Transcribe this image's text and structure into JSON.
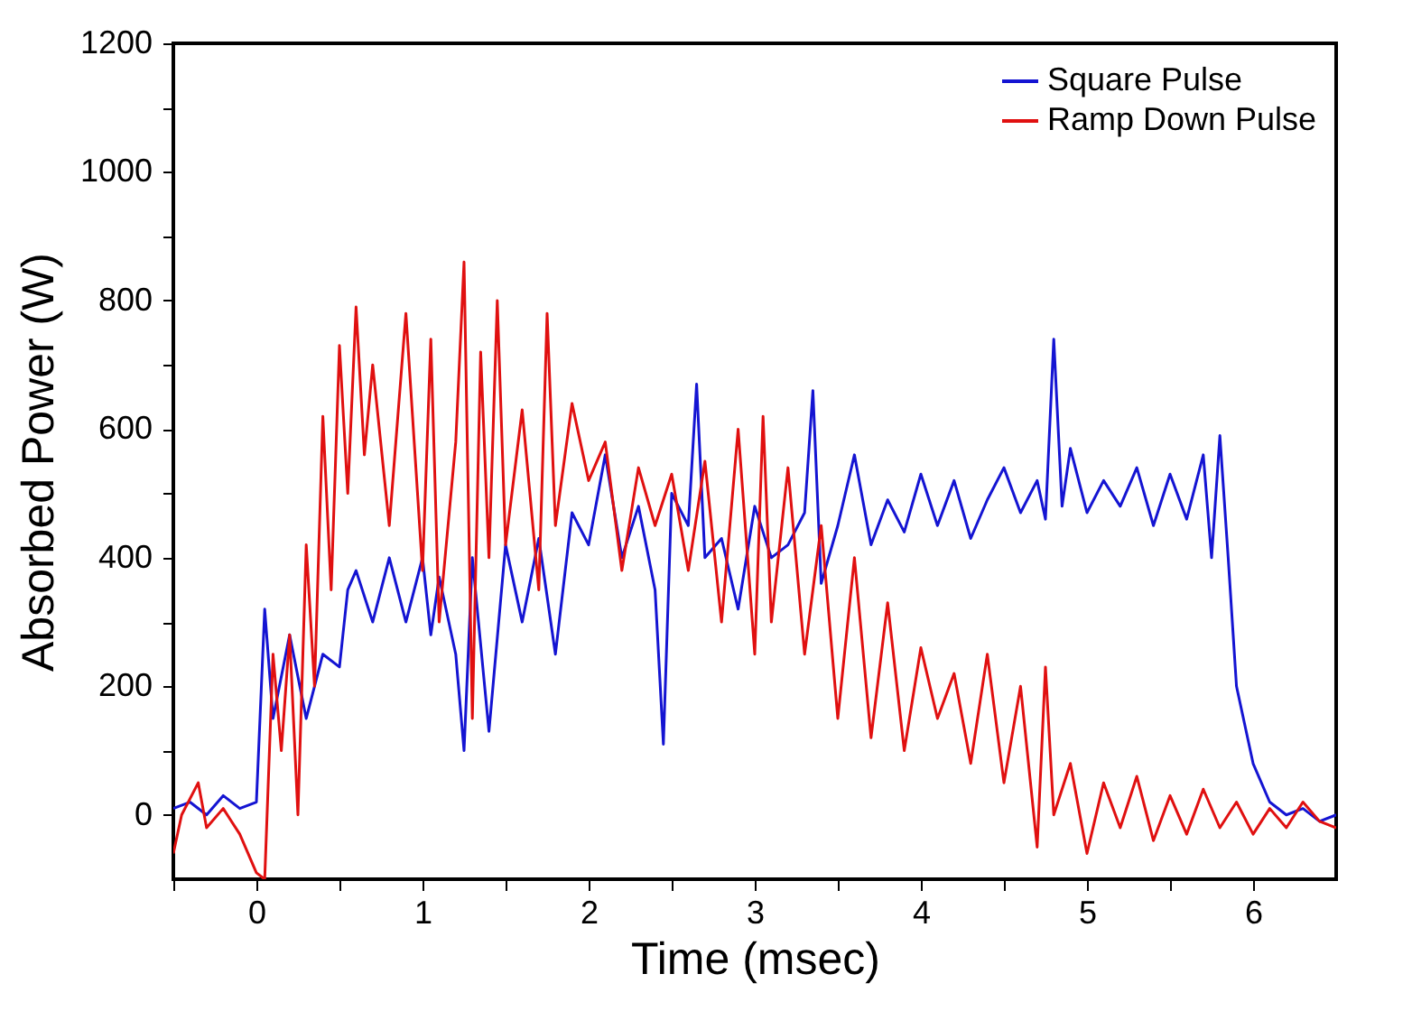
{
  "chart_data": {
    "type": "line",
    "xlabel": "Time (msec)",
    "ylabel": "Absorbed Power (W)",
    "xlim": [
      -0.5,
      6.5
    ],
    "ylim": [
      -100,
      1200
    ],
    "xticks": [
      {
        "value": -0.5,
        "label": null
      },
      0,
      {
        "value": 0.5,
        "label": null
      },
      1,
      {
        "value": 1.5,
        "label": null
      },
      2,
      {
        "value": 2.5,
        "label": null
      },
      3,
      {
        "value": 3.5,
        "label": null
      },
      4,
      {
        "value": 4.5,
        "label": null
      },
      5,
      {
        "value": 5.5,
        "label": null
      },
      6
    ],
    "yticks": [
      0,
      {
        "value": 100,
        "label": null
      },
      200,
      {
        "value": 300,
        "label": null
      },
      400,
      {
        "value": 500,
        "label": null
      },
      600,
      {
        "value": 700,
        "label": null
      },
      800,
      {
        "value": 900,
        "label": null
      },
      1000,
      {
        "value": 1100,
        "label": null
      },
      1200
    ],
    "grid": false,
    "legend": "top right",
    "series": [
      {
        "name": "Square Pulse",
        "color": "#1414d2",
        "x": [
          -0.5,
          -0.4,
          -0.3,
          -0.2,
          -0.1,
          0,
          0.05,
          0.1,
          0.2,
          0.3,
          0.4,
          0.5,
          0.55,
          0.6,
          0.7,
          0.8,
          0.9,
          1.0,
          1.05,
          1.1,
          1.2,
          1.25,
          1.3,
          1.4,
          1.5,
          1.6,
          1.7,
          1.8,
          1.9,
          2.0,
          2.1,
          2.2,
          2.3,
          2.4,
          2.45,
          2.5,
          2.6,
          2.65,
          2.7,
          2.8,
          2.9,
          3.0,
          3.1,
          3.2,
          3.3,
          3.35,
          3.4,
          3.5,
          3.6,
          3.7,
          3.8,
          3.9,
          4.0,
          4.1,
          4.2,
          4.3,
          4.4,
          4.5,
          4.6,
          4.7,
          4.75,
          4.8,
          4.85,
          4.9,
          5.0,
          5.1,
          5.2,
          5.3,
          5.4,
          5.5,
          5.6,
          5.7,
          5.75,
          5.8,
          5.85,
          5.9,
          6.0,
          6.1,
          6.2,
          6.3,
          6.4,
          6.5
        ],
        "values": [
          10,
          20,
          0,
          30,
          10,
          20,
          320,
          150,
          280,
          150,
          250,
          230,
          350,
          380,
          300,
          400,
          300,
          400,
          280,
          370,
          250,
          100,
          400,
          130,
          420,
          300,
          430,
          250,
          470,
          420,
          560,
          400,
          480,
          350,
          110,
          500,
          450,
          670,
          400,
          430,
          320,
          480,
          400,
          420,
          470,
          660,
          360,
          450,
          560,
          420,
          490,
          440,
          530,
          450,
          520,
          430,
          490,
          540,
          470,
          520,
          460,
          740,
          480,
          570,
          470,
          520,
          480,
          540,
          450,
          530,
          460,
          560,
          400,
          590,
          400,
          200,
          80,
          20,
          0,
          10,
          -10,
          0
        ]
      },
      {
        "name": "Ramp Down Pulse",
        "color": "#e01010",
        "x": [
          -0.5,
          -0.45,
          -0.35,
          -0.3,
          -0.2,
          -0.1,
          0,
          0.05,
          0.1,
          0.15,
          0.2,
          0.25,
          0.3,
          0.35,
          0.4,
          0.45,
          0.5,
          0.55,
          0.6,
          0.65,
          0.7,
          0.8,
          0.9,
          1.0,
          1.05,
          1.1,
          1.2,
          1.25,
          1.3,
          1.35,
          1.4,
          1.45,
          1.5,
          1.6,
          1.7,
          1.75,
          1.8,
          1.9,
          2.0,
          2.1,
          2.2,
          2.3,
          2.4,
          2.5,
          2.6,
          2.7,
          2.8,
          2.9,
          3.0,
          3.05,
          3.1,
          3.2,
          3.3,
          3.4,
          3.5,
          3.6,
          3.7,
          3.8,
          3.9,
          4.0,
          4.1,
          4.2,
          4.3,
          4.4,
          4.5,
          4.6,
          4.7,
          4.75,
          4.8,
          4.9,
          5.0,
          5.1,
          5.2,
          5.3,
          5.4,
          5.5,
          5.6,
          5.7,
          5.8,
          5.9,
          6.0,
          6.1,
          6.2,
          6.3,
          6.4,
          6.5
        ],
        "values": [
          -60,
          0,
          50,
          -20,
          10,
          -30,
          -90,
          -100,
          250,
          100,
          280,
          0,
          420,
          200,
          620,
          350,
          730,
          500,
          790,
          560,
          700,
          450,
          780,
          380,
          740,
          300,
          580,
          860,
          150,
          720,
          400,
          800,
          420,
          630,
          350,
          780,
          450,
          640,
          520,
          580,
          380,
          540,
          450,
          530,
          380,
          550,
          300,
          600,
          250,
          620,
          300,
          540,
          250,
          450,
          150,
          400,
          120,
          330,
          100,
          260,
          150,
          220,
          80,
          250,
          50,
          200,
          -50,
          230,
          0,
          80,
          -60,
          50,
          -20,
          60,
          -40,
          30,
          -30,
          40,
          -20,
          20,
          -30,
          10,
          -20,
          20,
          -10,
          -20
        ]
      }
    ]
  }
}
